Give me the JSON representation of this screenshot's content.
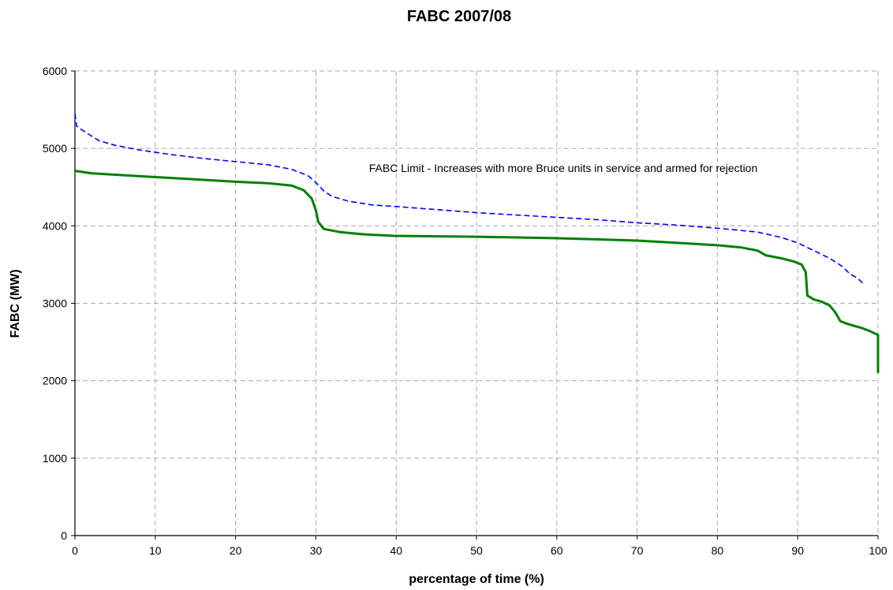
{
  "chart_data": {
    "type": "line",
    "title": "FABC 2007/08",
    "xlabel": "percentage of time (%)",
    "ylabel": "FABC (MW)",
    "xlim": [
      0,
      100
    ],
    "ylim": [
      0,
      6000
    ],
    "x_ticks": [
      0,
      10,
      20,
      30,
      40,
      50,
      60,
      70,
      80,
      90,
      100
    ],
    "y_ticks": [
      0,
      1000,
      2000,
      3000,
      4000,
      5000,
      6000
    ],
    "grid": true,
    "annotation": "FABC Limit - Increases with more Bruce units in service and armed for rejection",
    "series": [
      {
        "color": "#0000ff",
        "style": "dashed",
        "points": [
          [
            0,
            5450
          ],
          [
            0.2,
            5290
          ],
          [
            1,
            5230
          ],
          [
            3,
            5100
          ],
          [
            5,
            5040
          ],
          [
            8,
            4980
          ],
          [
            12,
            4920
          ],
          [
            16,
            4870
          ],
          [
            20,
            4830
          ],
          [
            24,
            4790
          ],
          [
            27,
            4730
          ],
          [
            29,
            4650
          ],
          [
            30,
            4560
          ],
          [
            31,
            4450
          ],
          [
            32,
            4380
          ],
          [
            34,
            4320
          ],
          [
            37,
            4270
          ],
          [
            40,
            4250
          ],
          [
            45,
            4210
          ],
          [
            50,
            4170
          ],
          [
            55,
            4140
          ],
          [
            60,
            4110
          ],
          [
            65,
            4080
          ],
          [
            70,
            4040
          ],
          [
            75,
            4010
          ],
          [
            80,
            3970
          ],
          [
            85,
            3920
          ],
          [
            88,
            3850
          ],
          [
            90,
            3780
          ],
          [
            92,
            3680
          ],
          [
            94,
            3580
          ],
          [
            95.5,
            3480
          ],
          [
            96.5,
            3380
          ],
          [
            97.5,
            3320
          ],
          [
            98.2,
            3250
          ]
        ]
      },
      {
        "color": "#008000",
        "style": "solid",
        "points": [
          [
            0,
            4710
          ],
          [
            2,
            4680
          ],
          [
            5,
            4660
          ],
          [
            10,
            4630
          ],
          [
            15,
            4600
          ],
          [
            20,
            4570
          ],
          [
            24,
            4550
          ],
          [
            27,
            4520
          ],
          [
            28.5,
            4460
          ],
          [
            29.5,
            4350
          ],
          [
            30,
            4200
          ],
          [
            30.3,
            4050
          ],
          [
            31,
            3960
          ],
          [
            33,
            3920
          ],
          [
            36,
            3890
          ],
          [
            40,
            3870
          ],
          [
            50,
            3860
          ],
          [
            60,
            3840
          ],
          [
            70,
            3810
          ],
          [
            75,
            3780
          ],
          [
            80,
            3750
          ],
          [
            83,
            3720
          ],
          [
            85,
            3680
          ],
          [
            86,
            3620
          ],
          [
            88,
            3580
          ],
          [
            89.5,
            3540
          ],
          [
            90.5,
            3500
          ],
          [
            91,
            3400
          ],
          [
            91.2,
            3100
          ],
          [
            92,
            3050
          ],
          [
            93,
            3020
          ],
          [
            94,
            2970
          ],
          [
            94.7,
            2880
          ],
          [
            95.3,
            2770
          ],
          [
            96,
            2740
          ],
          [
            97,
            2710
          ],
          [
            98,
            2680
          ],
          [
            99,
            2640
          ],
          [
            100,
            2590
          ],
          [
            100,
            2100
          ]
        ]
      }
    ]
  }
}
